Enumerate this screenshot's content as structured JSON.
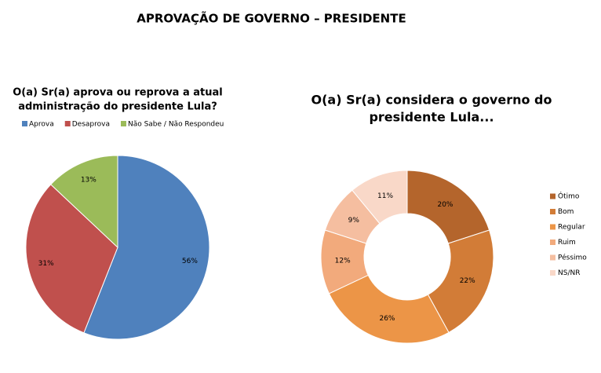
{
  "title": "APROVAÇÃO DE GOVERNO – PRESIDENTE",
  "chart_data": [
    {
      "type": "pie",
      "title": [
        "O(a) Sr(a) aprova ou reprova a atual",
        "administração do presidente Lula?"
      ],
      "categories": [
        "Aprova",
        "Desaprova",
        "Não Sabe / Não Respondeu"
      ],
      "values": [
        56,
        31,
        13
      ],
      "value_labels": [
        "56%",
        "31%",
        "13%"
      ],
      "colors": [
        "#4f81bd",
        "#c0504d",
        "#9bbb59"
      ],
      "legend": "top"
    },
    {
      "type": "donut",
      "title": [
        "O(a) Sr(a) considera o governo do",
        "presidente Lula..."
      ],
      "categories": [
        "Ótimo",
        "Bom",
        "Regular",
        "Ruim",
        "Péssimo",
        "NS/NR"
      ],
      "values": [
        20,
        22,
        26,
        12,
        9,
        11
      ],
      "value_labels": [
        "20%",
        "22%",
        "26%",
        "12%",
        "9%",
        "11%"
      ],
      "colors": [
        "#b4652c",
        "#d27c37",
        "#ec9547",
        "#f2aa7c",
        "#f5bea0",
        "#f9d8c8"
      ],
      "legend": "right"
    }
  ]
}
